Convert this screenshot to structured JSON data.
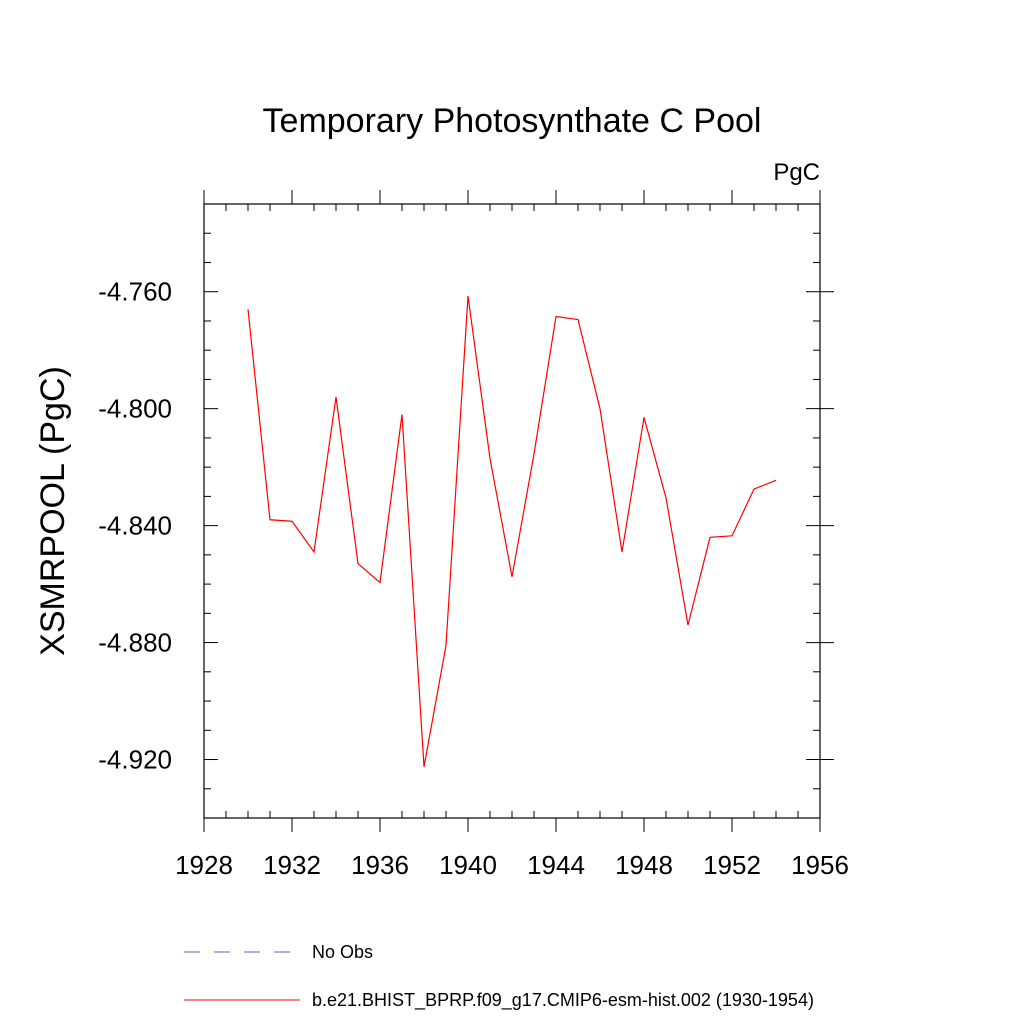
{
  "chart_data": {
    "type": "line",
    "title": "Temporary Photosynthate C Pool",
    "units": "PgC",
    "ylabel": "XSMRPOOL  (PgC)",
    "xlabel": "",
    "xlim": [
      1928,
      1956
    ],
    "ylim": [
      -4.94,
      -4.73
    ],
    "x_ticks": [
      1928,
      1932,
      1936,
      1940,
      1944,
      1948,
      1952,
      1956
    ],
    "x_tick_labels": [
      "1928",
      "1932",
      "1936",
      "1940",
      "1944",
      "1948",
      "1952",
      "1956"
    ],
    "x_minor_step": 1,
    "y_ticks": [
      -4.76,
      -4.8,
      -4.84,
      -4.88,
      -4.92
    ],
    "y_tick_labels": [
      "-4.760",
      "-4.800",
      "-4.840",
      "-4.880",
      "-4.920"
    ],
    "y_minor_step": 0.01,
    "grid": false,
    "series": [
      {
        "name": "b.e21.BHIST_BPRP.f09_g17.CMIP6-esm-hist.002 (1930-1954)",
        "color": "#ff0000",
        "dash": "solid",
        "x": [
          1930,
          1931,
          1932,
          1933,
          1934,
          1935,
          1936,
          1937,
          1938,
          1939,
          1940,
          1941,
          1942,
          1943,
          1944,
          1945,
          1946,
          1947,
          1948,
          1949,
          1950,
          1951,
          1952,
          1953,
          1954
        ],
        "values": [
          -4.766,
          -4.838,
          -4.8385,
          -4.849,
          -4.796,
          -4.853,
          -4.8595,
          -4.802,
          -4.9225,
          -4.881,
          -4.7615,
          -4.817,
          -4.8575,
          -4.8155,
          -4.7685,
          -4.7695,
          -4.8,
          -4.849,
          -4.803,
          -4.8305,
          -4.874,
          -4.844,
          -4.8435,
          -4.8275,
          -4.8245
        ]
      }
    ],
    "legend": {
      "placement": "bottom-left",
      "entries": [
        {
          "label": "No Obs",
          "color": "#6a5acd",
          "dash": "dashed"
        },
        {
          "label": "b.e21.BHIST_BPRP.f09_g17.CMIP6-esm-hist.002 (1930-1954)",
          "color": "#ff0000",
          "dash": "solid"
        }
      ]
    }
  }
}
